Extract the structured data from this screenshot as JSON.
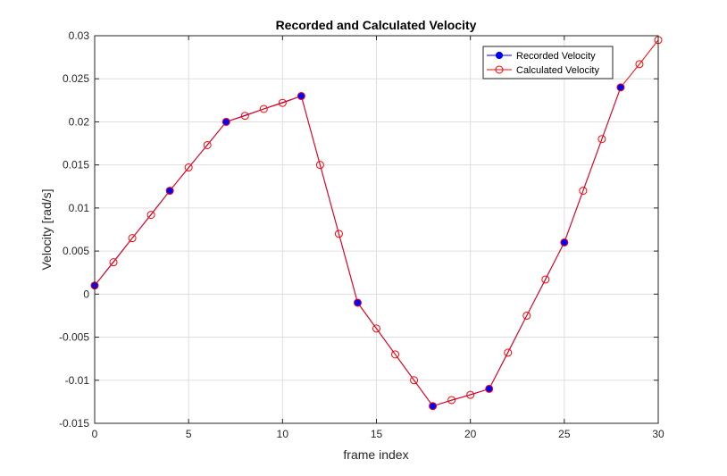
{
  "chart_data": {
    "type": "line",
    "title": "Recorded and Calculated Velocity",
    "xlabel": "frame index",
    "ylabel": "Velocity [rad/s]",
    "xlim": [
      0,
      30
    ],
    "ylim": [
      -0.015,
      0.03
    ],
    "xticks": [
      "0",
      "5",
      "10",
      "15",
      "20",
      "25",
      "30"
    ],
    "yticks": [
      "-0.015",
      "-0.01",
      "-0.005",
      "0",
      "0.005",
      "0.01",
      "0.015",
      "0.02",
      "0.025",
      "0.03"
    ],
    "grid": true,
    "legend_position": "top-right",
    "series": [
      {
        "name": "Recorded Velocity",
        "color": "#0000ff",
        "marker": "filled-circle",
        "x": [
          0,
          4,
          7,
          11,
          14,
          18,
          21,
          25,
          28
        ],
        "y": [
          0.001,
          0.012,
          0.02,
          0.023,
          -0.001,
          -0.013,
          -0.011,
          0.006,
          0.024
        ]
      },
      {
        "name": "Calculated Velocity",
        "color": "#ff0000",
        "marker": "open-circle",
        "x": [
          0,
          1,
          2,
          3,
          4,
          5,
          6,
          7,
          8,
          9,
          10,
          11,
          12,
          13,
          14,
          15,
          16,
          17,
          18,
          19,
          20,
          21,
          22,
          23,
          24,
          25,
          26,
          27,
          28,
          29,
          30
        ],
        "y": [
          0.001,
          0.0037,
          0.0065,
          0.0092,
          0.012,
          0.0147,
          0.0173,
          0.02,
          0.0207,
          0.0215,
          0.0222,
          0.023,
          0.015,
          0.007,
          -0.001,
          -0.004,
          -0.007,
          -0.01,
          -0.013,
          -0.0123,
          -0.0117,
          -0.011,
          -0.0068,
          -0.0025,
          0.0017,
          0.006,
          0.012,
          0.018,
          0.024,
          0.0267,
          0.0295
        ]
      }
    ]
  }
}
